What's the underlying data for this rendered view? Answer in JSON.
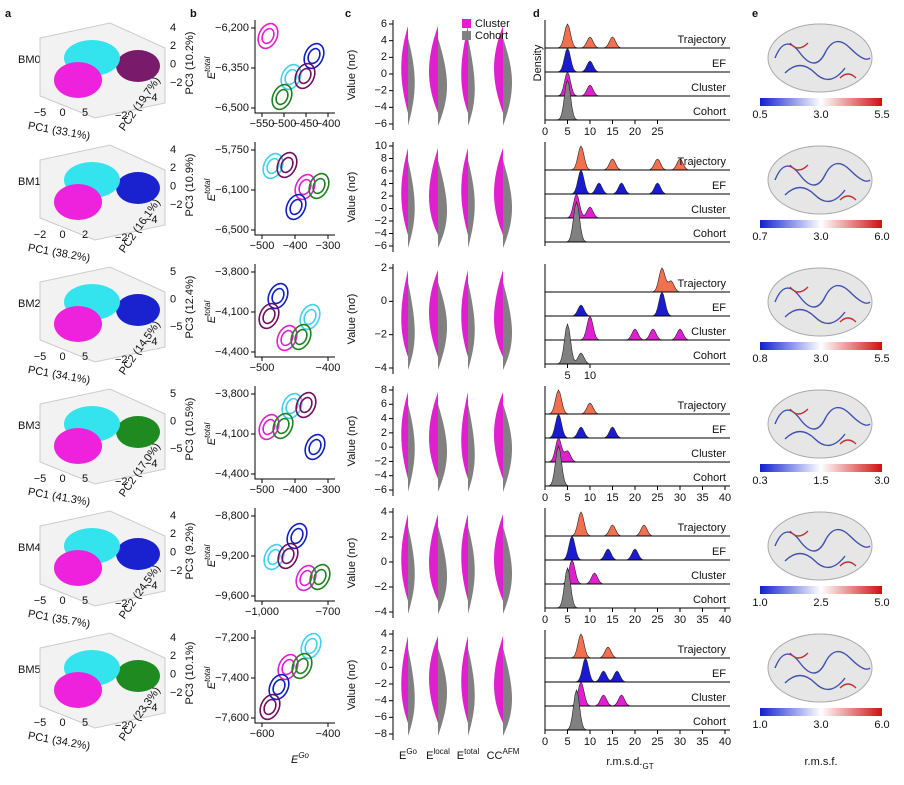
{
  "panel_labels": [
    "a",
    "b",
    "c",
    "d",
    "e"
  ],
  "a_colors": [
    "#ee22dd",
    "#33e4ee"
  ],
  "legend": [
    {
      "name": "Cluster",
      "color": "#e020d0"
    },
    {
      "name": "Cohort",
      "color": "#808080"
    }
  ],
  "b_ylabel": [
    "E",
    "total"
  ],
  "b_xlabel": [
    "E",
    "Go"
  ],
  "c_ylabel": "Value (nσ)",
  "c_categories": [
    [
      "E",
      "Go"
    ],
    [
      "E",
      "local"
    ],
    [
      "E",
      "total"
    ],
    [
      "CC",
      "AFM"
    ]
  ],
  "d_ylabel": "Density",
  "d_xlabel": [
    "r.m.s.d.",
    "GT"
  ],
  "d_tracks": [
    {
      "name": "Trajectory",
      "color": "#f07050"
    },
    {
      "name": "EF",
      "color": "#1a1ad0"
    },
    {
      "name": "Cluster",
      "color": "#e020d0"
    },
    {
      "name": "Cohort",
      "color": "#808080"
    }
  ],
  "e_xlabel": "r.m.s.f.",
  "rows": [
    {
      "name": "BM0",
      "color": "#7a1a6a",
      "pc": [
        "PC1 (33.1%)",
        "PC2 (19.7%)",
        "PC3 (10.2%)"
      ],
      "pc_ticks": [
        [
          "−5",
          "0",
          "5"
        ],
        [
          "−2",
          "−4"
        ],
        [
          "4",
          "2",
          "0",
          "−2"
        ]
      ],
      "b_yticks": [
        "−6,200",
        "−6,350",
        "−6,500"
      ],
      "b_xticks": [
        "−550",
        "−500",
        "−450",
        "−400"
      ],
      "c_yticks": [
        "6",
        "4",
        "2",
        "0",
        "−2",
        "−4",
        "−6"
      ],
      "d_xticks": [
        0,
        5,
        10,
        15,
        20,
        25
      ],
      "d_peaks": [
        [
          5,
          10,
          15
        ],
        [
          5,
          10
        ],
        [
          5,
          10
        ],
        [
          5
        ]
      ],
      "e_ticks": [
        "0.5",
        "3.0",
        "5.5"
      ]
    },
    {
      "name": "BM1",
      "color": "#1a22d0",
      "pc": [
        "PC1 (38.2%)",
        "PC2 (16.1%)",
        "PC3 (10.9%)"
      ],
      "pc_ticks": [
        [
          "−2",
          "0",
          "2"
        ],
        [
          "−2",
          "−4"
        ],
        [
          "4",
          "2",
          "0",
          "−2"
        ]
      ],
      "b_yticks": [
        "−5,750",
        "−6,100",
        "−6,500"
      ],
      "b_xticks": [
        "−500",
        "−400",
        "−300"
      ],
      "c_yticks": [
        "10",
        "8",
        "6",
        "4",
        "2",
        "0",
        "−2",
        "−4",
        "−6"
      ],
      "d_peaks": [
        [
          8,
          15,
          25,
          30
        ],
        [
          8,
          12,
          17,
          25
        ],
        [
          7,
          10
        ],
        [
          7
        ]
      ],
      "e_ticks": [
        "0.7",
        "3.0",
        "6.0"
      ]
    },
    {
      "name": "BM2",
      "color": "#1a22d0",
      "pc": [
        "PC1 (34.1%)",
        "PC2 (14.5%)",
        "PC3 (12.4%)"
      ],
      "pc_ticks": [
        [
          "−5",
          "0",
          "5"
        ],
        [
          "−2",
          "−4"
        ],
        [
          "5",
          "0",
          "−5"
        ]
      ],
      "b_yticks": [
        "−3,800",
        "−4,100",
        "−4,400"
      ],
      "b_xticks": [
        "−500",
        "−400"
      ],
      "c_yticks": [
        "2",
        "0",
        "−2",
        "−4"
      ],
      "d_xticks": [
        5,
        10
      ],
      "d_peaks": [
        [
          26,
          28
        ],
        [
          26,
          8
        ],
        [
          10,
          20,
          24,
          30
        ],
        [
          5,
          8
        ]
      ],
      "e_ticks": [
        "0.8",
        "3.0",
        "5.5"
      ]
    },
    {
      "name": "BM3",
      "color": "#1f8a1f",
      "pc": [
        "PC1 (41.3%)",
        "PC2 (17.0%)",
        "PC3 (10.5%)"
      ],
      "pc_ticks": [
        [
          "−5",
          "0",
          "5"
        ],
        [
          "−2",
          "−4"
        ],
        [
          "5",
          "0",
          "−5"
        ]
      ],
      "b_yticks": [
        "−3,800",
        "−4,100",
        "−4,400"
      ],
      "b_xticks": [
        "−500",
        "−400",
        "−300"
      ],
      "c_yticks": [
        "8",
        "6",
        "4",
        "2",
        "0",
        "−2",
        "−4",
        "−6"
      ],
      "d_xticks": [
        0,
        5,
        10,
        15,
        20,
        25,
        30,
        35,
        40
      ],
      "d_peaks": [
        [
          3,
          10
        ],
        [
          3,
          8,
          15
        ],
        [
          3,
          5
        ],
        [
          3
        ]
      ],
      "e_ticks": [
        "0.3",
        "1.5",
        "3.0"
      ]
    },
    {
      "name": "BM4",
      "color": "#1a22d0",
      "pc": [
        "PC1 (35.7%)",
        "PC2 (24.5%)",
        "PC3 (9.2%)"
      ],
      "pc_ticks": [
        [
          "−5",
          "0",
          "5"
        ],
        [
          "−2",
          "−4"
        ],
        [
          "4",
          "2",
          "0",
          "−2"
        ]
      ],
      "b_yticks": [
        "−8,800",
        "−9,200",
        "−9,600"
      ],
      "b_xticks": [
        "−1,000",
        "−700"
      ],
      "c_yticks": [
        "4",
        "2",
        "0",
        "−2",
        "−4"
      ],
      "d_xticks": [
        0,
        5,
        10,
        15,
        20,
        25,
        30,
        35,
        40
      ],
      "d_peaks": [
        [
          8,
          15,
          22
        ],
        [
          6,
          14,
          20
        ],
        [
          6,
          11
        ],
        [
          5
        ]
      ],
      "e_ticks": [
        "1.0",
        "2.5",
        "5.0"
      ]
    },
    {
      "name": "BM5",
      "color": "#1f8a1f",
      "pc": [
        "PC1 (34.2%)",
        "PC2 (23.3%)",
        "PC3 (10.1%)"
      ],
      "pc_ticks": [
        [
          "−5",
          "0",
          "5"
        ],
        [
          "−2",
          "−4"
        ],
        [
          "4",
          "2",
          "0",
          "−2"
        ]
      ],
      "b_yticks": [
        "−7,200",
        "−7,400",
        "−7,600"
      ],
      "b_xticks": [
        "−600",
        "−400"
      ],
      "c_yticks": [
        "4",
        "2",
        "0",
        "−2",
        "−4",
        "−6",
        "−8"
      ],
      "d_xticks": [
        0,
        5,
        10,
        15,
        20,
        25,
        30,
        35,
        40
      ],
      "d_peaks": [
        [
          8,
          14
        ],
        [
          9,
          13,
          16
        ],
        [
          8,
          13,
          17
        ],
        [
          7
        ]
      ],
      "e_ticks": [
        "1.0",
        "3.0",
        "6.0"
      ]
    }
  ]
}
